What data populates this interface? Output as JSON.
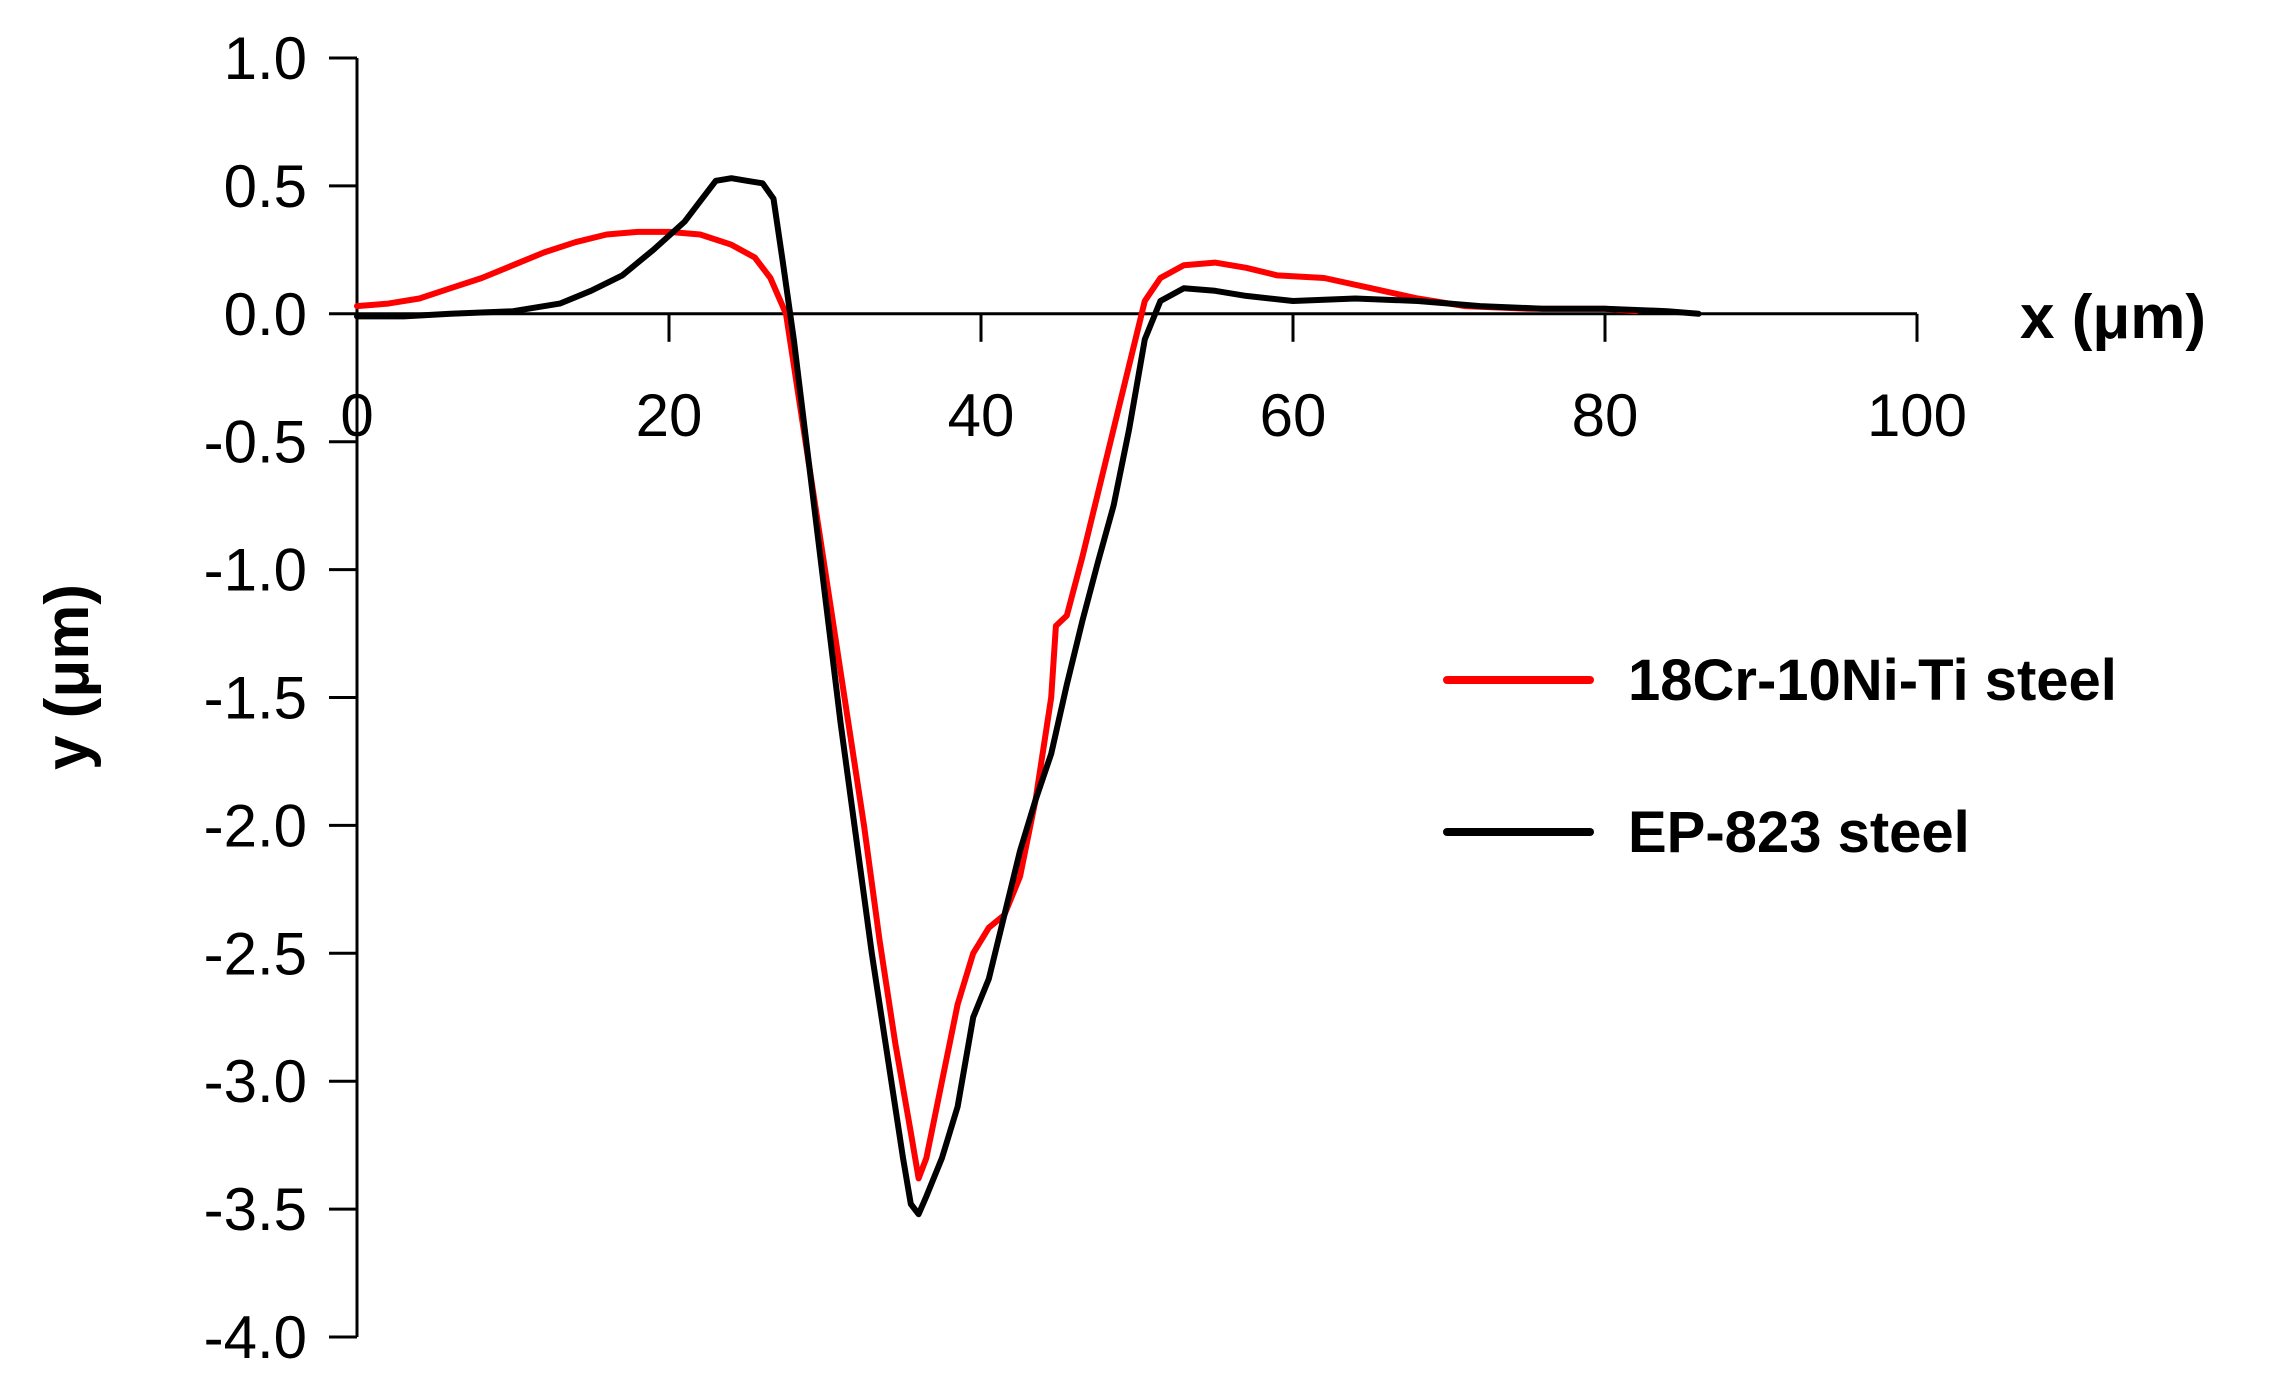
{
  "chart_data": {
    "type": "line",
    "title": "",
    "xlabel": "x (μm)",
    "ylabel": "y (μm)",
    "xlim": [
      0,
      100
    ],
    "ylim": [
      -4.0,
      1.0
    ],
    "x_ticks": [
      0,
      20,
      40,
      60,
      80,
      100
    ],
    "y_ticks": [
      1.0,
      0.5,
      0.0,
      -0.5,
      -1.0,
      -1.5,
      -2.0,
      -2.5,
      -3.0,
      -3.5,
      -4.0
    ],
    "x_tick_labels": [
      "0",
      "20",
      "40",
      "60",
      "80",
      "100"
    ],
    "y_tick_labels": [
      "1.0",
      "0.5",
      "0.0",
      "-0.5",
      "-1.0",
      "-1.5",
      "-2.0",
      "-2.5",
      "-3.0",
      "-3.5",
      "-4.0"
    ],
    "grid": false,
    "legend_position": "right",
    "series": [
      {
        "name": "18Cr-10Ni-Ti steel",
        "color": "#ff0000",
        "points": [
          [
            0,
            0.03
          ],
          [
            2,
            0.04
          ],
          [
            4,
            0.06
          ],
          [
            6,
            0.1
          ],
          [
            8,
            0.14
          ],
          [
            10,
            0.19
          ],
          [
            12,
            0.24
          ],
          [
            14,
            0.28
          ],
          [
            16,
            0.31
          ],
          [
            18,
            0.32
          ],
          [
            20,
            0.32
          ],
          [
            22,
            0.31
          ],
          [
            24,
            0.27
          ],
          [
            25.5,
            0.22
          ],
          [
            26.5,
            0.14
          ],
          [
            27.5,
            0.0
          ],
          [
            28.5,
            -0.4
          ],
          [
            29.5,
            -0.8
          ],
          [
            30.5,
            -1.2
          ],
          [
            31.5,
            -1.6
          ],
          [
            32.5,
            -2.0
          ],
          [
            33.5,
            -2.45
          ],
          [
            34.5,
            -2.85
          ],
          [
            35.5,
            -3.2
          ],
          [
            36,
            -3.38
          ],
          [
            36.5,
            -3.3
          ],
          [
            37.5,
            -3.0
          ],
          [
            38.5,
            -2.7
          ],
          [
            39.5,
            -2.5
          ],
          [
            40.5,
            -2.4
          ],
          [
            41.5,
            -2.35
          ],
          [
            42.5,
            -2.2
          ],
          [
            43.5,
            -1.9
          ],
          [
            44.5,
            -1.5
          ],
          [
            44.8,
            -1.22
          ],
          [
            45.5,
            -1.18
          ],
          [
            46.5,
            -0.95
          ],
          [
            47.5,
            -0.7
          ],
          [
            48.5,
            -0.45
          ],
          [
            49.5,
            -0.2
          ],
          [
            50.5,
            0.05
          ],
          [
            51.5,
            0.14
          ],
          [
            53,
            0.19
          ],
          [
            55,
            0.2
          ],
          [
            57,
            0.18
          ],
          [
            59,
            0.15
          ],
          [
            62,
            0.14
          ],
          [
            65,
            0.1
          ],
          [
            68,
            0.06
          ],
          [
            71,
            0.03
          ],
          [
            75,
            0.02
          ],
          [
            80,
            0.02
          ],
          [
            82,
            0.01
          ]
        ]
      },
      {
        "name": "EP-823 steel",
        "color": "#000000",
        "points": [
          [
            0,
            -0.01
          ],
          [
            3,
            -0.01
          ],
          [
            6,
            0.0
          ],
          [
            10,
            0.01
          ],
          [
            13,
            0.04
          ],
          [
            15,
            0.09
          ],
          [
            17,
            0.15
          ],
          [
            19,
            0.25
          ],
          [
            21,
            0.36
          ],
          [
            22,
            0.44
          ],
          [
            23,
            0.52
          ],
          [
            24,
            0.53
          ],
          [
            25,
            0.52
          ],
          [
            26,
            0.51
          ],
          [
            26.7,
            0.45
          ],
          [
            27.3,
            0.2
          ],
          [
            28,
            -0.1
          ],
          [
            29,
            -0.6
          ],
          [
            30,
            -1.1
          ],
          [
            31,
            -1.6
          ],
          [
            32,
            -2.05
          ],
          [
            33,
            -2.5
          ],
          [
            34,
            -2.9
          ],
          [
            35,
            -3.3
          ],
          [
            35.5,
            -3.48
          ],
          [
            36,
            -3.52
          ],
          [
            36.5,
            -3.45
          ],
          [
            37.5,
            -3.3
          ],
          [
            38.5,
            -3.1
          ],
          [
            39.5,
            -2.75
          ],
          [
            40.5,
            -2.6
          ],
          [
            41.5,
            -2.35
          ],
          [
            42.5,
            -2.1
          ],
          [
            43.5,
            -1.9
          ],
          [
            44.5,
            -1.72
          ],
          [
            45.5,
            -1.45
          ],
          [
            46.5,
            -1.2
          ],
          [
            47.5,
            -0.97
          ],
          [
            48.5,
            -0.75
          ],
          [
            49.5,
            -0.45
          ],
          [
            50.5,
            -0.1
          ],
          [
            51.5,
            0.05
          ],
          [
            53,
            0.1
          ],
          [
            55,
            0.09
          ],
          [
            57,
            0.07
          ],
          [
            60,
            0.05
          ],
          [
            64,
            0.06
          ],
          [
            68,
            0.05
          ],
          [
            72,
            0.03
          ],
          [
            76,
            0.02
          ],
          [
            80,
            0.02
          ],
          [
            84,
            0.01
          ],
          [
            86,
            0.0
          ]
        ]
      }
    ]
  }
}
